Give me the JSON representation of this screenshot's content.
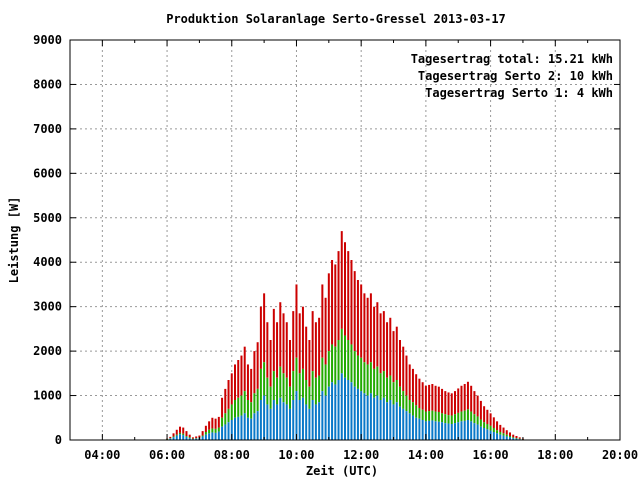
{
  "chart_data": {
    "type": "bar",
    "stacked": true,
    "title": "Produktion Solaranlage Serto-Gressel 2013-03-17",
    "xlabel": "Zeit (UTC)",
    "ylabel": "Leistung [W]",
    "xlim": [
      3,
      20
    ],
    "ylim": [
      0,
      9000
    ],
    "x_ticks": [
      "04:00",
      "06:00",
      "08:00",
      "10:00",
      "12:00",
      "14:00",
      "16:00",
      "18:00",
      "20:00"
    ],
    "y_ticks": [
      0,
      1000,
      2000,
      3000,
      4000,
      5000,
      6000,
      7000,
      8000,
      9000
    ],
    "grid": true,
    "legend_position": "top-right",
    "legend": [
      {
        "label": "Tagesertrag total: 15.21 kWh",
        "color": "#cc0000"
      },
      {
        "label": "Tagesertrag Serto 2: 10 kWh",
        "color": "#22aa00"
      },
      {
        "label": "Tagesertrag Serto 1: 4 kWh",
        "color": "#0a78c8"
      }
    ],
    "series_colors": {
      "serto1": "#0a78c8",
      "serto2": "#22aa00",
      "total": "#cc0000"
    },
    "x_hours": [
      6.0,
      6.1,
      6.2,
      6.3,
      6.4,
      6.5,
      6.6,
      6.7,
      6.8,
      6.9,
      7.0,
      7.1,
      7.2,
      7.3,
      7.4,
      7.5,
      7.6,
      7.7,
      7.8,
      7.9,
      8.0,
      8.1,
      8.2,
      8.3,
      8.4,
      8.5,
      8.6,
      8.7,
      8.8,
      8.9,
      9.0,
      9.1,
      9.2,
      9.3,
      9.4,
      9.5,
      9.6,
      9.7,
      9.8,
      9.9,
      10.0,
      10.1,
      10.2,
      10.3,
      10.4,
      10.5,
      10.6,
      10.7,
      10.8,
      10.9,
      11.0,
      11.1,
      11.2,
      11.3,
      11.4,
      11.5,
      11.6,
      11.7,
      11.8,
      11.9,
      12.0,
      12.1,
      12.2,
      12.3,
      12.4,
      12.5,
      12.6,
      12.7,
      12.8,
      12.9,
      13.0,
      13.1,
      13.2,
      13.3,
      13.4,
      13.5,
      13.6,
      13.7,
      13.8,
      13.9,
      14.0,
      14.1,
      14.2,
      14.3,
      14.4,
      14.5,
      14.6,
      14.7,
      14.8,
      14.9,
      15.0,
      15.1,
      15.2,
      15.3,
      15.4,
      15.5,
      15.6,
      15.7,
      15.8,
      15.9,
      16.0,
      16.1,
      16.2,
      16.3,
      16.4,
      16.5,
      16.6,
      16.7,
      16.8,
      16.9,
      17.0
    ],
    "serto1": [
      0,
      30,
      60,
      100,
      130,
      110,
      70,
      40,
      20,
      30,
      40,
      80,
      120,
      150,
      170,
      160,
      190,
      300,
      350,
      400,
      450,
      500,
      520,
      550,
      600,
      500,
      480,
      600,
      650,
      900,
      1000,
      800,
      700,
      900,
      800,
      950,
      850,
      800,
      700,
      900,
      1100,
      900,
      950,
      800,
      700,
      900,
      800,
      850,
      1100,
      1000,
      1200,
      1300,
      1250,
      1350,
      1500,
      1400,
      1350,
      1300,
      1200,
      1150,
      1100,
      1050,
      1000,
      1050,
      950,
      1000,
      900,
      950,
      850,
      900,
      800,
      850,
      750,
      700,
      650,
      600,
      550,
      500,
      480,
      450,
      420,
      430,
      440,
      420,
      410,
      400,
      380,
      370,
      360,
      380,
      400,
      420,
      430,
      450,
      420,
      380,
      350,
      300,
      270,
      240,
      210,
      180,
      150,
      120,
      100,
      80,
      60,
      40,
      30,
      20,
      10
    ],
    "serto2": [
      20,
      40,
      80,
      120,
      160,
      140,
      90,
      60,
      30,
      40,
      50,
      100,
      180,
      230,
      260,
      250,
      280,
      500,
      600,
      700,
      800,
      900,
      950,
      1000,
      1100,
      900,
      850,
      1050,
      1150,
      1600,
      1750,
      1400,
      1200,
      1550,
      1400,
      1650,
      1500,
      1400,
      1200,
      1550,
      1850,
      1500,
      1600,
      1350,
      1200,
      1550,
      1400,
      1450,
      1850,
      1700,
      2000,
      2150,
      2100,
      2250,
      2500,
      2350,
      2250,
      2150,
      2000,
      1900,
      1850,
      1750,
      1700,
      1750,
      1600,
      1650,
      1500,
      1550,
      1400,
      1450,
      1300,
      1350,
      1200,
      1100,
      1000,
      900,
      850,
      780,
      720,
      680,
      640,
      650,
      660,
      640,
      630,
      600,
      580,
      560,
      550,
      580,
      610,
      640,
      660,
      690,
      640,
      580,
      530,
      460,
      400,
      360,
      320,
      270,
      220,
      180,
      150,
      120,
      90,
      60,
      45,
      30,
      15
    ],
    "total": [
      30,
      70,
      150,
      230,
      300,
      280,
      200,
      120,
      60,
      80,
      100,
      200,
      320,
      420,
      500,
      480,
      520,
      950,
      1150,
      1350,
      1500,
      1700,
      1800,
      1900,
      2100,
      1700,
      1600,
      2000,
      2200,
      3000,
      3300,
      2650,
      2250,
      2950,
      2650,
      3100,
      2850,
      2650,
      2250,
      2900,
      3500,
      2850,
      3000,
      2550,
      2250,
      2900,
      2650,
      2750,
      3500,
      3200,
      3750,
      4050,
      3950,
      4250,
      4700,
      4450,
      4250,
      4050,
      3800,
      3600,
      3500,
      3300,
      3200,
      3300,
      3000,
      3100,
      2850,
      2900,
      2650,
      2750,
      2450,
      2550,
      2250,
      2100,
      1900,
      1700,
      1600,
      1480,
      1380,
      1300,
      1220,
      1240,
      1260,
      1220,
      1200,
      1150,
      1100,
      1070,
      1050,
      1100,
      1160,
      1220,
      1260,
      1310,
      1220,
      1100,
      1000,
      880,
      760,
      680,
      600,
      510,
      420,
      340,
      280,
      220,
      170,
      120,
      90,
      60,
      30
    ]
  }
}
